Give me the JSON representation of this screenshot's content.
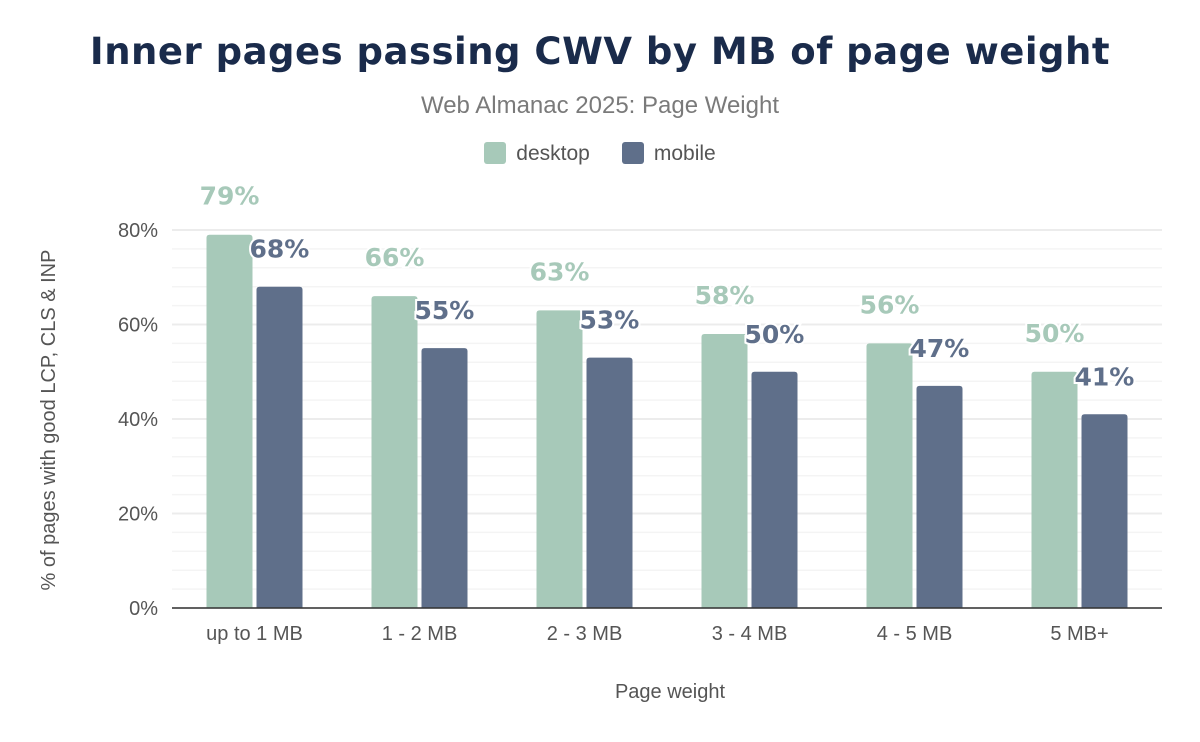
{
  "chart_data": {
    "type": "bar",
    "title": "Inner pages passing CWV by MB of page weight",
    "subtitle": "Web Almanac 2025: Page Weight",
    "xlabel": "Page weight",
    "ylabel": "% of pages with good LCP, CLS & INP",
    "categories": [
      "up to 1 MB",
      "1 - 2 MB",
      "2 - 3 MB",
      "3 - 4 MB",
      "4 - 5 MB",
      "5 MB+"
    ],
    "series": [
      {
        "name": "desktop",
        "color": "#a7c9b9",
        "values": [
          79,
          66,
          63,
          58,
          56,
          50
        ],
        "labels": [
          "79%",
          "66%",
          "63%",
          "58%",
          "56%",
          "50%"
        ]
      },
      {
        "name": "mobile",
        "color": "#5f6f8a",
        "values": [
          68,
          55,
          53,
          50,
          47,
          41
        ],
        "labels": [
          "68%",
          "55%",
          "53%",
          "50%",
          "47%",
          "41%"
        ]
      }
    ],
    "ylim": [
      0,
      80
    ],
    "yticks": [
      "0%",
      "20%",
      "40%",
      "60%",
      "80%"
    ],
    "grid": true,
    "legend": "top"
  }
}
